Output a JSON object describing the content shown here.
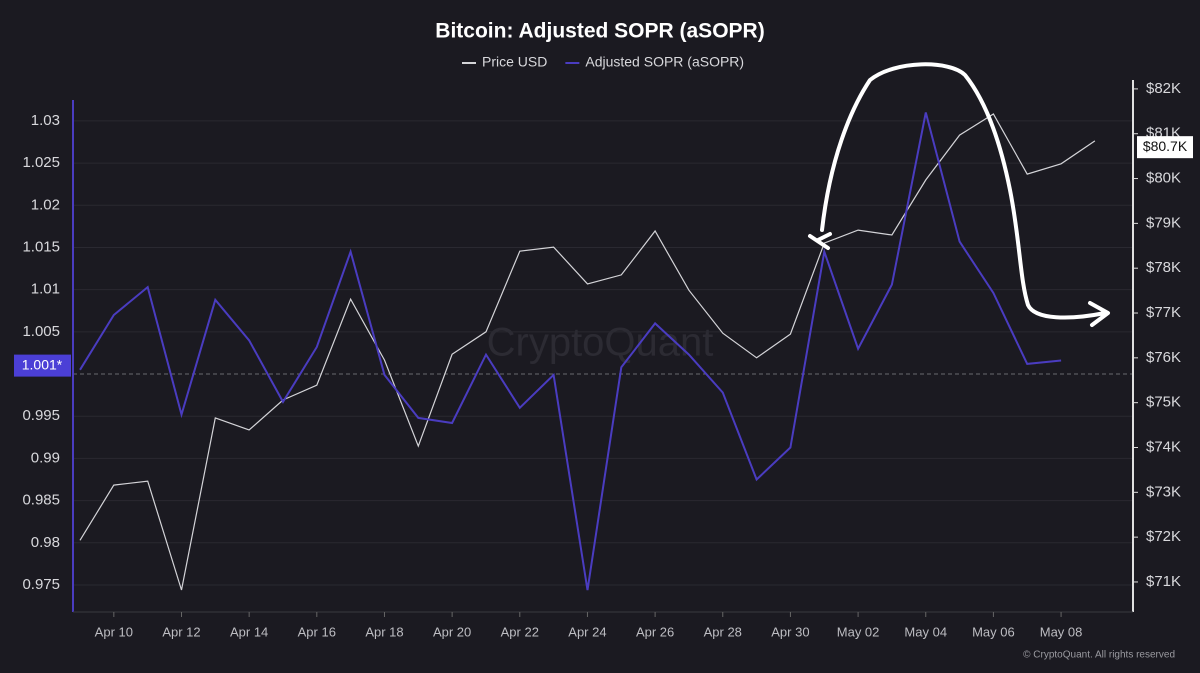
{
  "chart_data": {
    "type": "line",
    "title": "Bitcoin: Adjusted SOPR (aSOPR)",
    "watermark": "CryptoQuant",
    "footer": "© CryptoQuant. All rights reserved",
    "categories": [
      null,
      "Apr 10",
      null,
      "Apr 12",
      null,
      "Apr 14",
      null,
      "Apr 16",
      null,
      "Apr 18",
      null,
      "Apr 20",
      null,
      "Apr 22",
      null,
      "Apr 24",
      null,
      "Apr 26",
      null,
      "Apr 28",
      null,
      "Apr 30",
      null,
      "May 02",
      null,
      "May 04",
      null,
      "May 06",
      null,
      "May 08",
      null
    ],
    "series": [
      {
        "name": "Price USD",
        "color": "#d4d4d8",
        "axis": "y2",
        "values": [
          71.93,
          73.16,
          73.25,
          70.82,
          74.66,
          74.39,
          75.06,
          75.39,
          77.31,
          75.95,
          74.03,
          76.08,
          76.58,
          78.38,
          78.47,
          77.65,
          77.85,
          78.83,
          77.51,
          76.55,
          76.0,
          76.53,
          78.56,
          78.85,
          78.74,
          79.97,
          80.97,
          81.44,
          80.1,
          80.33,
          80.84
        ]
      },
      {
        "name": "Adjusted SOPR (aSOPR)",
        "color": "#4a3cc0",
        "values": [
          1.0005,
          1.007,
          1.0103,
          0.9952,
          1.0088,
          1.004,
          0.9967,
          1.0032,
          1.0145,
          0.9999,
          0.9948,
          0.9942,
          1.0023,
          0.996,
          0.9999,
          0.9744,
          1.0008,
          1.006,
          1.0023,
          0.9978,
          0.9875,
          0.9913,
          1.0145,
          1.003,
          1.0106,
          1.031,
          1.0157,
          1.0096,
          1.0012,
          1.0016,
          null
        ]
      }
    ],
    "ylim": [
      0.9718,
      1.0339
    ],
    "yticks": [
      0.975,
      0.98,
      0.985,
      0.99,
      0.995,
      1.005,
      1.01,
      1.015,
      1.02,
      1.025,
      1.03
    ],
    "y2lim": [
      70.33,
      82.02
    ],
    "y2ticks": [
      {
        "value": 71,
        "label": "$71K"
      },
      {
        "value": 72,
        "label": "$72K"
      },
      {
        "value": 73,
        "label": "$73K"
      },
      {
        "value": 74,
        "label": "$74K"
      },
      {
        "value": 75,
        "label": "$75K"
      },
      {
        "value": 76,
        "label": "$76K"
      },
      {
        "value": 77,
        "label": "$77K"
      },
      {
        "value": 78,
        "label": "$78K"
      },
      {
        "value": 79,
        "label": "$79K"
      },
      {
        "value": 80,
        "label": "$80K"
      },
      {
        "value": 81,
        "label": "$81K"
      },
      {
        "value": 82,
        "label": "$82K"
      }
    ],
    "reference_line": 1,
    "current_y": {
      "value": 1.001,
      "label": "1.001*"
    },
    "current_y2": {
      "value": 80.7,
      "label": "$80.7K"
    },
    "grid": true,
    "legend": "top"
  }
}
